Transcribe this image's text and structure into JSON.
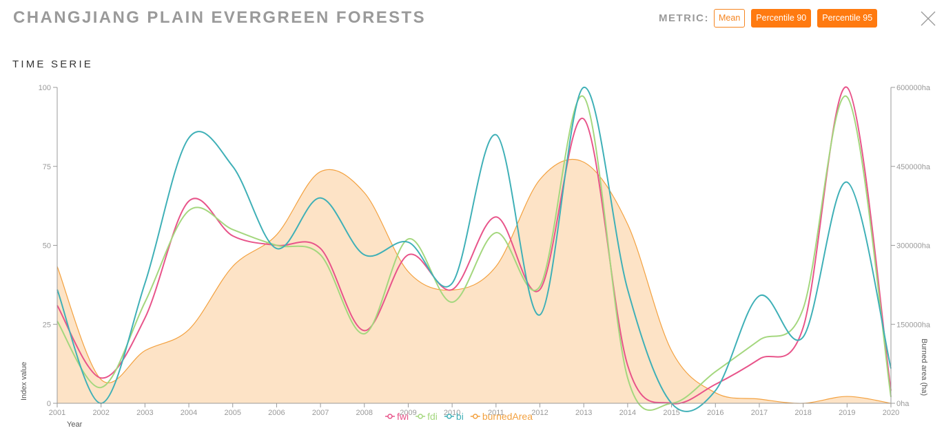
{
  "header": {
    "title": "CHANGJIANG PLAIN EVERGREEN FORESTS",
    "metric_label": "METRIC:",
    "metrics": [
      {
        "label": "Mean",
        "style": "outline"
      },
      {
        "label": "Percentile 90",
        "style": "filled"
      },
      {
        "label": "Percentile 95",
        "style": "filled"
      }
    ]
  },
  "section": {
    "title": "TIME SERIE"
  },
  "colors": {
    "fwi": "#e8548a",
    "fdi": "#a4d77e",
    "bi": "#3fb0b7",
    "burnedArea": "#f3a13f",
    "burnedArea_fill": "#fde3c6",
    "axis": "#999999",
    "accent": "#ff7a10"
  },
  "icons": {
    "close": "close-icon"
  },
  "chart_data": {
    "type": "line",
    "x": [
      2001,
      2002,
      2003,
      2004,
      2005,
      2006,
      2007,
      2008,
      2009,
      2010,
      2011,
      2012,
      2013,
      2014,
      2015,
      2016,
      2017,
      2018,
      2019,
      2020
    ],
    "xlabel": "Year",
    "ylabel": "Index value",
    "y2label": "Burned area (ha)",
    "ylim": [
      0,
      100
    ],
    "y2lim": [
      0,
      600000
    ],
    "yticks": [
      0,
      25,
      50,
      75,
      100
    ],
    "y2ticks": [
      "0ha",
      "150000ha",
      "300000ha",
      "450000ha",
      "600000ha"
    ],
    "legend_position": "bottom-center",
    "series": [
      {
        "name": "fwi",
        "axis": "left",
        "values": [
          31,
          8,
          27,
          64,
          53,
          50,
          49,
          23,
          47,
          36,
          59,
          36,
          90,
          12,
          0,
          6,
          14,
          24,
          100,
          4
        ]
      },
      {
        "name": "fdi",
        "axis": "left",
        "values": [
          26,
          5,
          32,
          61,
          55,
          50,
          47,
          22,
          52,
          32,
          54,
          37,
          97,
          8,
          0,
          10,
          20,
          30,
          97,
          2
        ]
      },
      {
        "name": "bi",
        "axis": "left",
        "values": [
          36,
          0,
          38,
          84,
          75,
          49,
          65,
          47,
          51,
          38,
          85,
          28,
          100,
          36,
          0,
          4,
          34,
          21,
          70,
          11
        ]
      },
      {
        "name": "burnedArea",
        "axis": "right",
        "type": "area",
        "values": [
          260000,
          45000,
          100000,
          140000,
          260000,
          320000,
          440000,
          400000,
          250000,
          215000,
          260000,
          425000,
          458000,
          340000,
          100000,
          20000,
          8000,
          0,
          13000,
          0
        ]
      }
    ]
  }
}
